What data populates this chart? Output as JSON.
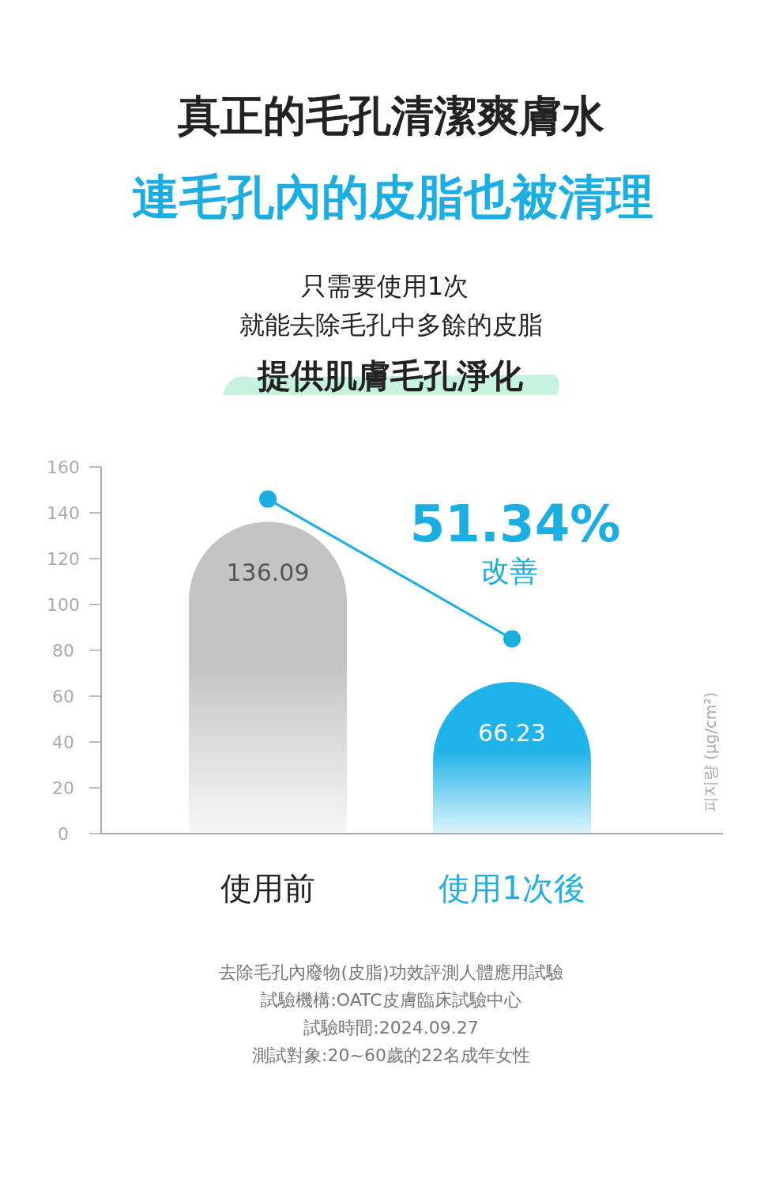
{
  "chart_data": {
    "type": "bar",
    "title": "真正的毛孔清潔爽膚水",
    "subtitle": "連毛孔內的皮脂也被清理",
    "categories": [
      "使用前",
      "使用1次後"
    ],
    "ylim": [
      0,
      160
    ],
    "yticks": [
      0,
      20,
      40,
      60,
      80,
      100,
      120,
      140,
      160
    ],
    "ylabel": "피지량 (µg/cm²)",
    "series": [
      {
        "colors": [
          "#c4c4c4",
          "#1fb3e9"
        ],
        "values": [
          136.09,
          66.23
        ],
        "value_labels": [
          "136.09",
          "66.23"
        ]
      },
      {
        "type": "line",
        "color": "#1aaee3",
        "values": [
          146,
          85
        ],
        "marker": "circle"
      }
    ],
    "annotations": [
      "只需要使用1次",
      "就能去除毛孔中多餘的皮脂",
      "提供肌膚毛孔淨化",
      "51.34%",
      "改善",
      "去除毛孔內廢物(皮脂)功效評測人體應用試驗",
      "試驗機構:OATC皮膚臨床試驗中心",
      "試驗時間:2024.09.27",
      "測試對象:20~60歲的22名成年女性"
    ]
  }
}
